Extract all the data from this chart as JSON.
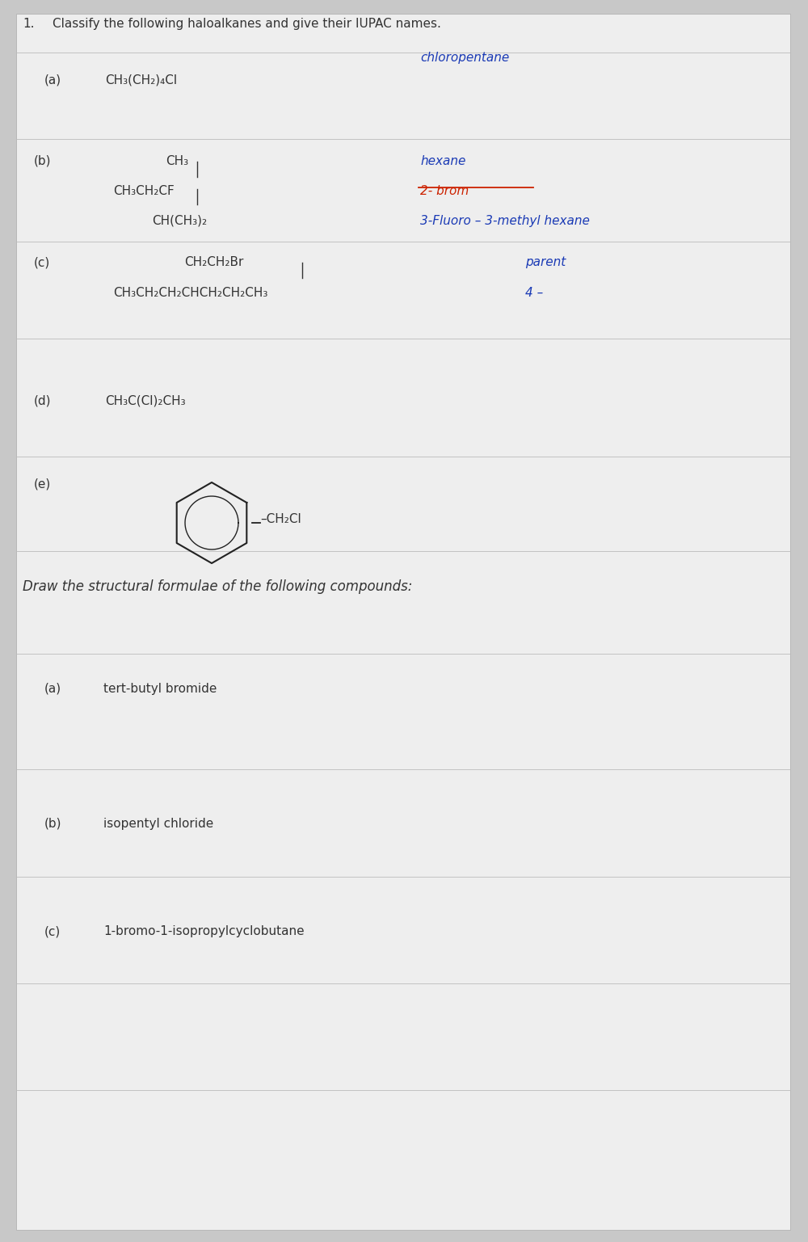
{
  "bg_color": "#c8c8c8",
  "paper_color": "#eeeeee",
  "text_color": "#333333",
  "blue_color": "#1a3ab5",
  "red_color": "#cc2200",
  "figsize": [
    10.0,
    15.37
  ],
  "dpi": 100,
  "q1_label": "1.",
  "q1_text": "Classify the following haloalkanes and give their IUPAC names.",
  "a_label": "(a)",
  "a_formula": "CH₃(CH₂)₄Cl",
  "a_answer": "chloropentane",
  "b_label": "(b)",
  "b_line1": "CH₃",
  "b_line2": "CH₃CH₂CF",
  "b_line3": "CH(CH₃)₂",
  "b_answer_top": "hexane",
  "b_answer_strike": "2- brom",
  "b_answer_bottom": "3-Fluoro – 3-methyl hexane",
  "c_label": "(c)",
  "c_top": "CH₂CH₂Br",
  "c_bottom": "CH₃CH₂CH₂CHCH₂CH₂CH₃",
  "c_answer_top": "parent",
  "c_answer_bottom": "4 –",
  "d_label": "(d)",
  "d_formula": "CH₃C(Cl)₂CH₃",
  "e_label": "(e)",
  "e_formula": "–CH₂Cl",
  "q2_text": "Draw the structural formulae of the following compounds:",
  "q2a_label": "(a)",
  "q2a_text": "tert-butyl bromide",
  "q2b_label": "(b)",
  "q2b_text": "isopentyl chloride",
  "q2c_label": "(c)",
  "q2c_text": "1-bromo-1-isopropylcyclobutane",
  "section_lines_y": [
    14.72,
    13.65,
    12.38,
    11.18,
    9.72,
    8.55,
    7.28,
    5.85,
    4.52,
    3.2,
    1.88
  ]
}
